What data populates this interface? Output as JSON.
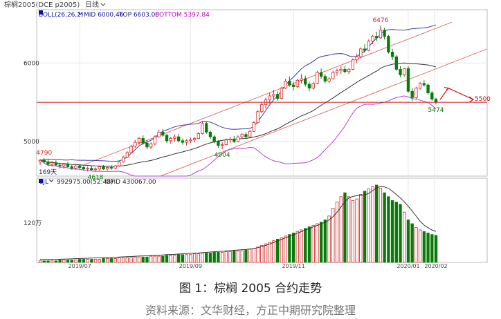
{
  "header": {
    "symbol": "棕榈2005(DCE p2005)",
    "period": "日线",
    "period_arrow_icon": "chevron-down-icon"
  },
  "boll_legend": {
    "label": "BOLL(26,26,2)",
    "mid": "MID 6000.46",
    "top": "TOP 6603.08",
    "bottom": "BOTTOM 5397.84"
  },
  "vol_legend": {
    "label": "CJL",
    "cjl": "992975.00(52:48)",
    "opid": "OPID 430067.00"
  },
  "days_label": "169天",
  "colors": {
    "up": "#d82020",
    "down": "#0a7a0a",
    "boll_mid": "#333333",
    "boll_band": "#3a3aa8",
    "boll_low": "#b040d8",
    "channel": "#e07070",
    "support": "#d01010",
    "legend_blue": "#1010a0",
    "legend_magenta": "#c000c0",
    "grid": "#e6e6e6"
  },
  "chart_data": {
    "type": "candlestick",
    "y_ticks": [
      "6000",
      "5000"
    ],
    "vol_y_tick": "120万",
    "x_ticks": [
      "2019/07",
      "2019/09",
      "2019/11",
      "2020/01",
      "2020/02"
    ],
    "annotations": [
      {
        "label": "6476",
        "value": 6476,
        "color": "#d82020"
      },
      {
        "label": "4790",
        "value": 4790,
        "color": "#d82020"
      },
      {
        "label": "4904",
        "value": 4904,
        "color": "#0a7a0a"
      },
      {
        "label": "4618",
        "value": 4618,
        "color": "#0a7a0a"
      },
      {
        "label": "5474",
        "value": 5474,
        "color": "#0a7a0a"
      }
    ],
    "support_level": {
      "label": "5500",
      "value": 5500
    },
    "price_ylim": [
      4560,
      6680
    ],
    "candles": [
      [
        4740,
        4780,
        4700,
        4760
      ],
      [
        4760,
        4790,
        4720,
        4740
      ],
      [
        4740,
        4770,
        4690,
        4710
      ],
      [
        4710,
        4750,
        4680,
        4730
      ],
      [
        4730,
        4760,
        4690,
        4700
      ],
      [
        4700,
        4730,
        4660,
        4690
      ],
      [
        4690,
        4720,
        4650,
        4710
      ],
      [
        4710,
        4740,
        4670,
        4680
      ],
      [
        4680,
        4700,
        4640,
        4660
      ],
      [
        4660,
        4700,
        4640,
        4690
      ],
      [
        4690,
        4710,
        4650,
        4670
      ],
      [
        4670,
        4690,
        4630,
        4650
      ],
      [
        4650,
        4680,
        4620,
        4660
      ],
      [
        4660,
        4690,
        4630,
        4640
      ],
      [
        4640,
        4670,
        4618,
        4650
      ],
      [
        4650,
        4690,
        4630,
        4680
      ],
      [
        4680,
        4700,
        4640,
        4650
      ],
      [
        4650,
        4680,
        4630,
        4670
      ],
      [
        4670,
        4700,
        4640,
        4660
      ],
      [
        4660,
        4700,
        4650,
        4690
      ],
      [
        4690,
        4750,
        4680,
        4740
      ],
      [
        4740,
        4820,
        4730,
        4800
      ],
      [
        4800,
        4880,
        4790,
        4860
      ],
      [
        4860,
        4960,
        4850,
        4940
      ],
      [
        4940,
        5020,
        4920,
        4990
      ],
      [
        4990,
        5060,
        4960,
        5040
      ],
      [
        5040,
        5080,
        4960,
        4980
      ],
      [
        4980,
        5020,
        4900,
        4930
      ],
      [
        4930,
        4990,
        4900,
        4970
      ],
      [
        4970,
        5080,
        4950,
        5060
      ],
      [
        5060,
        5150,
        5050,
        5120
      ],
      [
        5120,
        5160,
        5060,
        5080
      ],
      [
        5080,
        5100,
        4980,
        5010
      ],
      [
        5010,
        5060,
        4970,
        5040
      ],
      [
        5040,
        5090,
        5000,
        5060
      ],
      [
        5060,
        5100,
        4990,
        5010
      ],
      [
        5010,
        5040,
        4960,
        4990
      ],
      [
        4990,
        5030,
        4950,
        5010
      ],
      [
        5010,
        5050,
        4980,
        5020
      ],
      [
        5020,
        5060,
        4990,
        5040
      ],
      [
        5040,
        5120,
        5030,
        5100
      ],
      [
        5100,
        5260,
        5090,
        5230
      ],
      [
        5230,
        5250,
        5100,
        5120
      ],
      [
        5120,
        5140,
        5030,
        5060
      ],
      [
        5060,
        5080,
        4980,
        5000
      ],
      [
        5000,
        5020,
        4920,
        4950
      ],
      [
        4950,
        4990,
        4904,
        4960
      ],
      [
        4960,
        5040,
        4950,
        5020
      ],
      [
        5020,
        5060,
        4980,
        5030
      ],
      [
        5030,
        5070,
        4980,
        5000
      ],
      [
        5000,
        5080,
        4990,
        5060
      ],
      [
        5060,
        5110,
        5030,
        5090
      ],
      [
        5090,
        5120,
        5040,
        5060
      ],
      [
        5060,
        5150,
        5050,
        5130
      ],
      [
        5130,
        5260,
        5120,
        5240
      ],
      [
        5240,
        5400,
        5230,
        5380
      ],
      [
        5380,
        5500,
        5360,
        5470
      ],
      [
        5470,
        5560,
        5420,
        5530
      ],
      [
        5530,
        5620,
        5480,
        5580
      ],
      [
        5580,
        5660,
        5540,
        5600
      ],
      [
        5600,
        5640,
        5520,
        5550
      ],
      [
        5550,
        5700,
        5540,
        5680
      ],
      [
        5680,
        5800,
        5670,
        5770
      ],
      [
        5770,
        5830,
        5700,
        5720
      ],
      [
        5720,
        5760,
        5650,
        5700
      ],
      [
        5700,
        5800,
        5680,
        5780
      ],
      [
        5780,
        5860,
        5740,
        5800
      ],
      [
        5800,
        5840,
        5700,
        5730
      ],
      [
        5730,
        5760,
        5640,
        5680
      ],
      [
        5680,
        5760,
        5660,
        5740
      ],
      [
        5740,
        5900,
        5730,
        5880
      ],
      [
        5880,
        5930,
        5800,
        5830
      ],
      [
        5830,
        5860,
        5740,
        5770
      ],
      [
        5770,
        5820,
        5740,
        5800
      ],
      [
        5800,
        5900,
        5790,
        5880
      ],
      [
        5880,
        5930,
        5840,
        5900
      ],
      [
        5900,
        5960,
        5860,
        5920
      ],
      [
        5920,
        5960,
        5870,
        5890
      ],
      [
        5890,
        5940,
        5860,
        5920
      ],
      [
        5920,
        6060,
        5910,
        6040
      ],
      [
        6040,
        6120,
        6000,
        6080
      ],
      [
        6080,
        6200,
        6060,
        6180
      ],
      [
        6180,
        6240,
        6130,
        6160
      ],
      [
        6160,
        6300,
        6150,
        6280
      ],
      [
        6280,
        6360,
        6240,
        6340
      ],
      [
        6340,
        6400,
        6280,
        6320
      ],
      [
        6320,
        6476,
        6310,
        6420
      ],
      [
        6420,
        6450,
        6300,
        6340
      ],
      [
        6340,
        6360,
        6120,
        6140
      ],
      [
        6140,
        6180,
        6040,
        6080
      ],
      [
        6080,
        6100,
        5900,
        5920
      ],
      [
        5920,
        5960,
        5820,
        5850
      ],
      [
        5850,
        5940,
        5830,
        5930
      ],
      [
        5930,
        5960,
        5620,
        5640
      ],
      [
        5640,
        5680,
        5520,
        5560
      ],
      [
        5560,
        5700,
        5540,
        5680
      ],
      [
        5680,
        5760,
        5660,
        5740
      ],
      [
        5740,
        5780,
        5700,
        5720
      ],
      [
        5720,
        5740,
        5600,
        5620
      ],
      [
        5620,
        5640,
        5520,
        5540
      ],
      [
        5540,
        5560,
        5474,
        5500
      ]
    ],
    "volume_ylim": [
      0,
      3100000
    ],
    "volume_ratio": [
      0.02,
      0.02,
      0.02,
      0.02,
      0.02,
      0.03,
      0.03,
      0.03,
      0.03,
      0.03,
      0.04,
      0.04,
      0.04,
      0.04,
      0.04,
      0.04,
      0.05,
      0.05,
      0.05,
      0.05,
      0.06,
      0.06,
      0.06,
      0.06,
      0.07,
      0.07,
      0.07,
      0.07,
      0.08,
      0.08,
      0.08,
      0.08,
      0.09,
      0.09,
      0.09,
      0.1,
      0.1,
      0.1,
      0.1,
      0.11,
      0.11,
      0.12,
      0.12,
      0.12,
      0.13,
      0.13,
      0.13,
      0.14,
      0.14,
      0.15,
      0.15,
      0.15,
      0.16,
      0.17,
      0.18,
      0.2,
      0.22,
      0.24,
      0.26,
      0.28,
      0.3,
      0.32,
      0.34,
      0.36,
      0.38,
      0.4,
      0.42,
      0.44,
      0.46,
      0.48,
      0.5,
      0.52,
      0.55,
      0.6,
      0.7,
      0.78,
      0.85,
      0.9,
      0.85,
      0.8,
      0.82,
      0.88,
      0.92,
      0.95,
      0.98,
      1.0,
      0.96,
      0.9,
      0.85,
      0.8,
      0.78,
      0.75,
      0.65,
      0.55,
      0.5,
      0.45,
      0.42,
      0.4,
      0.38,
      0.36,
      0.35
    ]
  },
  "caption": "图 1：棕榈 2005 合约走势",
  "source": "资料来源：文华财经，方正中期研究院整理"
}
